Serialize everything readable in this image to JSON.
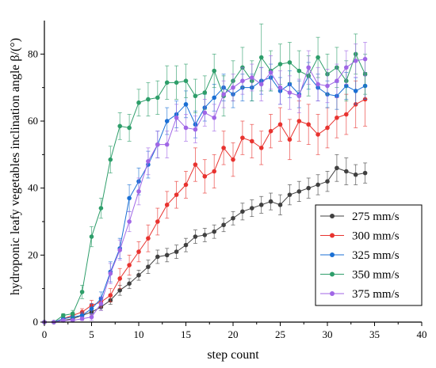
{
  "chart_data": {
    "type": "line",
    "xlabel": "step count",
    "ylabel": "hydroponic leafy vegetables inclination angle β/(°)",
    "xlim": [
      0,
      40
    ],
    "ylim": [
      0,
      90
    ],
    "x_ticks": [
      0,
      5,
      10,
      15,
      20,
      25,
      30,
      35,
      40
    ],
    "y_ticks": [
      0,
      20,
      40,
      60,
      80
    ],
    "x_tick_labels": [
      "0",
      "5",
      "10",
      "15",
      "20",
      "25",
      "30",
      "35",
      "40"
    ],
    "y_tick_labels": [
      "0",
      "20",
      "40",
      "60",
      "80"
    ],
    "legend_position": "bottom-right",
    "grid": false,
    "x": [
      0,
      1,
      2,
      3,
      4,
      5,
      6,
      7,
      8,
      9,
      10,
      11,
      12,
      13,
      14,
      15,
      16,
      17,
      18,
      19,
      20,
      21,
      22,
      23,
      24,
      25,
      26,
      27,
      28,
      29,
      30,
      31,
      32,
      33,
      34
    ],
    "series": [
      {
        "name": "275 mm/s",
        "color": "#404040",
        "values": [
          0,
          0,
          0.5,
          1,
          2,
          3,
          4.5,
          6.5,
          9.5,
          11.5,
          14,
          16.5,
          19.5,
          20,
          21,
          23,
          25.5,
          26,
          27,
          29,
          31,
          33,
          34,
          35,
          36,
          35,
          38,
          39,
          40,
          41,
          42,
          46,
          45,
          44,
          44.5
        ],
        "errors": [
          0,
          0,
          0.3,
          0.5,
          0.6,
          0.8,
          1,
          1.2,
          1.5,
          1.5,
          1.5,
          2,
          2,
          2,
          2,
          2,
          2,
          2,
          2,
          2,
          2,
          2.5,
          2.5,
          2.5,
          2.5,
          3,
          3,
          3,
          3,
          3,
          3,
          4,
          4,
          3,
          3
        ]
      },
      {
        "name": "300 mm/s",
        "color": "#e8332f",
        "values": [
          0,
          0,
          1,
          2,
          3,
          5,
          6,
          8,
          13,
          17,
          21,
          25,
          30,
          35,
          38,
          41,
          47,
          43.5,
          45,
          52,
          48.5,
          55,
          54,
          52,
          57,
          59,
          54.5,
          60,
          59,
          56,
          58,
          61,
          62,
          65,
          66.5
        ],
        "errors": [
          0,
          0,
          0.4,
          0.8,
          1,
          1.5,
          1.5,
          2,
          3,
          3,
          3,
          4,
          4,
          4,
          4,
          4,
          5,
          5,
          5,
          5,
          5,
          5,
          5,
          5,
          5,
          5,
          6,
          6,
          6,
          6,
          6,
          6,
          6,
          7,
          8
        ]
      },
      {
        "name": "325 mm/s",
        "color": "#1a6fd4",
        "values": [
          0,
          0,
          1,
          1.5,
          2,
          4,
          7,
          15,
          22,
          37,
          42,
          47,
          53,
          60,
          62,
          65,
          59,
          64,
          67,
          70,
          68,
          70,
          70,
          72,
          73,
          69,
          71,
          68,
          73.5,
          70,
          68,
          67.5,
          70.5,
          69,
          70.5
        ],
        "errors": [
          0,
          0,
          0.5,
          1,
          1,
          1.5,
          2,
          3,
          3,
          4,
          4,
          4,
          4,
          4,
          4,
          4,
          4,
          4,
          4,
          4,
          4,
          4,
          4,
          4,
          4,
          4,
          4,
          4,
          4,
          4,
          4,
          4,
          4,
          4,
          4
        ]
      },
      {
        "name": "350 mm/s",
        "color": "#2e9e6a",
        "values": [
          0,
          0,
          2,
          2.5,
          9,
          25.5,
          34,
          48.5,
          58.5,
          58,
          65.5,
          66.5,
          67,
          71.5,
          71.5,
          72,
          67.5,
          68.5,
          75,
          67.5,
          72,
          76,
          72,
          79,
          75,
          77,
          77.5,
          75,
          73.5,
          79,
          74,
          76,
          72,
          80,
          74
        ],
        "errors": [
          0,
          0,
          0.5,
          1,
          2,
          3,
          3,
          4,
          4,
          4,
          4,
          5,
          5,
          5,
          5,
          5,
          5,
          5,
          5,
          6,
          6,
          6,
          6,
          10,
          6,
          6,
          6,
          6,
          6,
          6,
          6,
          6,
          6,
          6,
          6
        ]
      },
      {
        "name": "375 mm/s",
        "color": "#a066e6",
        "values": [
          0,
          0,
          0.5,
          0.5,
          1,
          1.5,
          5.5,
          14.5,
          21.5,
          30,
          39,
          48,
          53,
          53,
          61,
          58,
          57.5,
          62.5,
          61,
          68,
          70,
          72,
          73,
          71,
          74.5,
          70,
          68.5,
          67.5,
          76,
          71,
          70.5,
          72,
          76,
          78,
          78.5
        ],
        "errors": [
          0,
          0,
          0.3,
          0.5,
          0.5,
          1,
          2,
          3,
          3,
          3,
          4,
          4,
          4,
          4,
          4,
          4,
          4,
          4,
          4,
          4,
          4,
          4,
          4,
          5,
          5,
          5,
          5,
          5,
          5,
          5,
          5,
          5,
          5,
          5,
          5
        ]
      }
    ]
  }
}
